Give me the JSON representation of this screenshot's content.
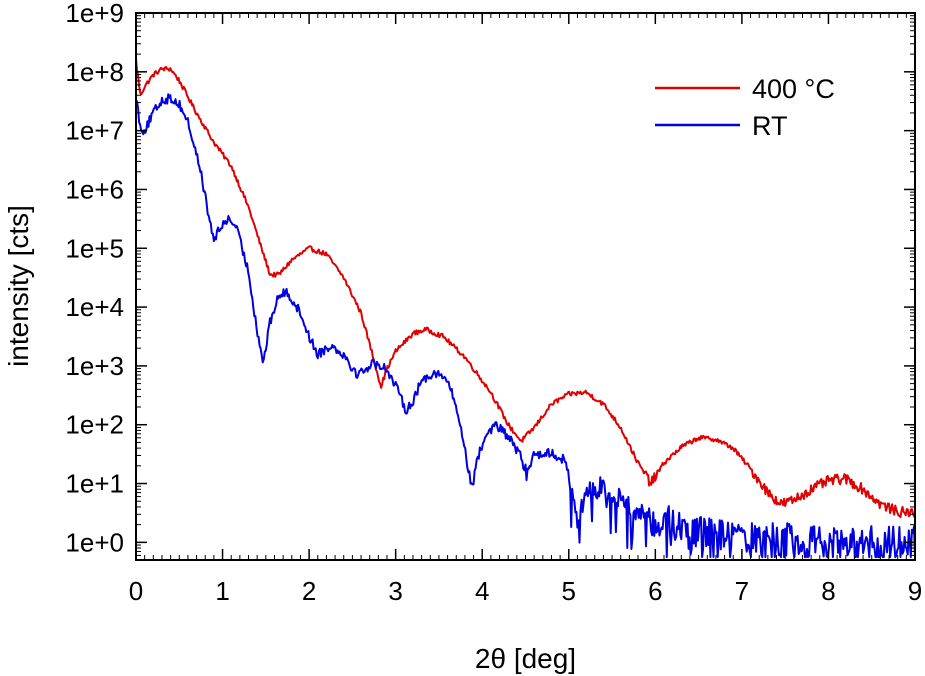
{
  "chart_data": {
    "type": "line",
    "title": "",
    "xlabel": "2θ  [deg]",
    "ylabel": "intensity  [cts]",
    "xlim": [
      0,
      9
    ],
    "ylim_log10": [
      -0.3,
      9
    ],
    "y_scale": "log",
    "x_ticks": [
      0,
      1,
      2,
      3,
      4,
      5,
      6,
      7,
      8,
      9
    ],
    "x_tick_labels": [
      "0",
      "1",
      "2",
      "3",
      "4",
      "5",
      "6",
      "7",
      "8",
      "9"
    ],
    "y_ticks_log10": [
      0,
      1,
      2,
      3,
      4,
      5,
      6,
      7,
      8,
      9
    ],
    "y_tick_labels": [
      "1e+0",
      "1e+1",
      "1e+2",
      "1e+3",
      "1e+4",
      "1e+5",
      "1e+6",
      "1e+7",
      "1e+8",
      "1e+9"
    ],
    "grid": false,
    "legend_position": "top-right",
    "series": [
      {
        "name": "400 °C",
        "color": "#e00000",
        "noise_log10": 0.04,
        "points_log10": [
          [
            0.0,
            8.2
          ],
          [
            0.05,
            7.6
          ],
          [
            0.1,
            7.75
          ],
          [
            0.2,
            7.95
          ],
          [
            0.3,
            8.05
          ],
          [
            0.4,
            8.05
          ],
          [
            0.5,
            7.85
          ],
          [
            0.7,
            7.3
          ],
          [
            0.9,
            6.8
          ],
          [
            1.1,
            6.4
          ],
          [
            1.3,
            5.7
          ],
          [
            1.45,
            5.0
          ],
          [
            1.55,
            4.55
          ],
          [
            1.65,
            4.55
          ],
          [
            1.8,
            4.8
          ],
          [
            2.0,
            5.0
          ],
          [
            2.2,
            4.9
          ],
          [
            2.4,
            4.5
          ],
          [
            2.6,
            3.9
          ],
          [
            2.75,
            3.1
          ],
          [
            2.83,
            2.65
          ],
          [
            2.9,
            2.95
          ],
          [
            3.0,
            3.25
          ],
          [
            3.2,
            3.55
          ],
          [
            3.35,
            3.62
          ],
          [
            3.55,
            3.5
          ],
          [
            3.8,
            3.15
          ],
          [
            4.1,
            2.55
          ],
          [
            4.3,
            2.0
          ],
          [
            4.45,
            1.72
          ],
          [
            4.6,
            1.95
          ],
          [
            4.8,
            2.35
          ],
          [
            5.0,
            2.52
          ],
          [
            5.2,
            2.55
          ],
          [
            5.4,
            2.35
          ],
          [
            5.6,
            1.95
          ],
          [
            5.8,
            1.35
          ],
          [
            5.95,
            1.0
          ],
          [
            6.1,
            1.35
          ],
          [
            6.3,
            1.62
          ],
          [
            6.5,
            1.78
          ],
          [
            6.7,
            1.75
          ],
          [
            6.9,
            1.6
          ],
          [
            7.1,
            1.25
          ],
          [
            7.3,
            0.85
          ],
          [
            7.45,
            0.65
          ],
          [
            7.6,
            0.72
          ],
          [
            7.8,
            0.9
          ],
          [
            8.0,
            1.05
          ],
          [
            8.2,
            1.08
          ],
          [
            8.4,
            0.9
          ],
          [
            8.6,
            0.65
          ],
          [
            8.8,
            0.52
          ],
          [
            9.0,
            0.5
          ]
        ]
      },
      {
        "name": "RT",
        "color": "#0000e0",
        "noise_log10": 0.08,
        "points_log10": [
          [
            0.0,
            7.6
          ],
          [
            0.05,
            7.05
          ],
          [
            0.1,
            7.0
          ],
          [
            0.2,
            7.3
          ],
          [
            0.3,
            7.52
          ],
          [
            0.4,
            7.55
          ],
          [
            0.5,
            7.45
          ],
          [
            0.6,
            7.15
          ],
          [
            0.75,
            6.3
          ],
          [
            0.85,
            5.45
          ],
          [
            0.9,
            5.15
          ],
          [
            0.95,
            5.28
          ],
          [
            1.05,
            5.5
          ],
          [
            1.15,
            5.4
          ],
          [
            1.3,
            4.6
          ],
          [
            1.4,
            3.6
          ],
          [
            1.47,
            3.05
          ],
          [
            1.55,
            3.75
          ],
          [
            1.65,
            4.2
          ],
          [
            1.75,
            4.25
          ],
          [
            1.9,
            3.9
          ],
          [
            2.0,
            3.5
          ],
          [
            2.1,
            3.2
          ],
          [
            2.25,
            3.35
          ],
          [
            2.4,
            3.2
          ],
          [
            2.55,
            2.85
          ],
          [
            2.75,
            3.05
          ],
          [
            2.9,
            2.95
          ],
          [
            3.05,
            2.5
          ],
          [
            3.12,
            2.25
          ],
          [
            3.2,
            2.4
          ],
          [
            3.3,
            2.75
          ],
          [
            3.45,
            2.9
          ],
          [
            3.6,
            2.75
          ],
          [
            3.7,
            2.3
          ],
          [
            3.8,
            1.6
          ],
          [
            3.87,
            0.95
          ],
          [
            3.95,
            1.45
          ],
          [
            4.05,
            1.85
          ],
          [
            4.15,
            2.0
          ],
          [
            4.3,
            1.8
          ],
          [
            4.45,
            1.45
          ],
          [
            4.5,
            1.15
          ],
          [
            4.6,
            1.5
          ],
          [
            4.8,
            1.52
          ],
          [
            4.95,
            1.4
          ],
          [
            5.05,
            0.85
          ],
          [
            5.1,
            0.35
          ],
          [
            5.2,
            0.85
          ],
          [
            5.4,
            0.95
          ],
          [
            5.6,
            0.75
          ],
          [
            5.75,
            0.55
          ],
          [
            5.9,
            0.5
          ],
          [
            6.0,
            0.3
          ],
          [
            6.2,
            0.35
          ],
          [
            6.4,
            0.15
          ],
          [
            6.6,
            0.15
          ],
          [
            6.8,
            0.1
          ],
          [
            7.0,
            0.05
          ],
          [
            7.5,
            0.05
          ],
          [
            8.0,
            0.0
          ],
          [
            8.5,
            0.0
          ],
          [
            9.0,
            0.0
          ]
        ]
      }
    ]
  }
}
